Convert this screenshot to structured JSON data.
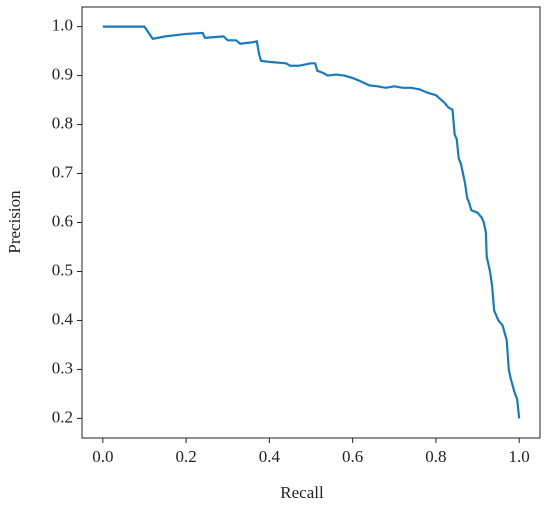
{
  "chart_data": {
    "type": "line",
    "xlabel": "Recall",
    "ylabel": "Precision",
    "xlim": [
      -0.05,
      1.05
    ],
    "ylim": [
      0.16,
      1.04
    ],
    "xticks": [
      {
        "value": 0,
        "label": "0.0"
      },
      0.2,
      0.4,
      0.6,
      0.8,
      {
        "value": 1,
        "label": "1.0"
      }
    ],
    "yticks": [
      0.2,
      0.3,
      0.4,
      0.5,
      0.6,
      0.7,
      0.8,
      0.9,
      {
        "value": 1,
        "label": "1.0"
      }
    ],
    "x": [
      0,
      0.1,
      0.12,
      0.15,
      0.2,
      0.24,
      0.245,
      0.29,
      0.3,
      0.32,
      0.33,
      0.36,
      0.37,
      0.375,
      0.38,
      0.4,
      0.44,
      0.45,
      0.47,
      0.5,
      0.51,
      0.515,
      0.53,
      0.54,
      0.56,
      0.58,
      0.6,
      0.62,
      0.64,
      0.66,
      0.68,
      0.7,
      0.72,
      0.74,
      0.76,
      0.78,
      0.8,
      0.82,
      0.83,
      0.84,
      0.845,
      0.85,
      0.855,
      0.86,
      0.865,
      0.87,
      0.875,
      0.88,
      0.885,
      0.9,
      0.91,
      0.915,
      0.92,
      0.922,
      0.93,
      0.935,
      0.94,
      0.95,
      0.96,
      0.97,
      0.975,
      0.98,
      0.99,
      0.995,
      1.0
    ],
    "series": [
      {
        "color": "#1a7bb9",
        "values": [
          1.0,
          1.0,
          0.975,
          0.98,
          0.985,
          0.987,
          0.977,
          0.98,
          0.972,
          0.972,
          0.965,
          0.968,
          0.97,
          0.945,
          0.93,
          0.928,
          0.925,
          0.92,
          0.92,
          0.925,
          0.925,
          0.91,
          0.905,
          0.9,
          0.902,
          0.9,
          0.895,
          0.888,
          0.88,
          0.878,
          0.875,
          0.878,
          0.875,
          0.875,
          0.872,
          0.865,
          0.86,
          0.845,
          0.835,
          0.83,
          0.78,
          0.77,
          0.73,
          0.72,
          0.7,
          0.68,
          0.65,
          0.64,
          0.625,
          0.62,
          0.61,
          0.6,
          0.58,
          0.53,
          0.5,
          0.47,
          0.42,
          0.4,
          0.39,
          0.36,
          0.3,
          0.28,
          0.25,
          0.24,
          0.2
        ]
      }
    ]
  }
}
